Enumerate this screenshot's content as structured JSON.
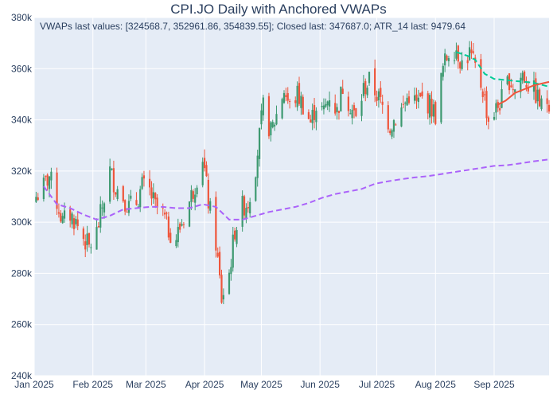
{
  "chart_data": {
    "type": "candlestick",
    "title": "CPI.JO Daily with Anchored VWAPs",
    "annotation": "VWAPs last values: [324568.7, 352961.86, 354839.55]; Closed last: 347687.0; ATR_14 last: 9479.64",
    "xlabel": "",
    "ylabel": "",
    "x_range": [
      "2025-01-01",
      "2025-09-30"
    ],
    "ylim": [
      240000,
      380000
    ],
    "x_ticks": [
      {
        "date": "2025-01-01",
        "label": "Jan 2025"
      },
      {
        "date": "2025-02-01",
        "label": "Feb 2025"
      },
      {
        "date": "2025-03-01",
        "label": "Mar 2025"
      },
      {
        "date": "2025-04-01",
        "label": "Apr 2025"
      },
      {
        "date": "2025-05-01",
        "label": "May 2025"
      },
      {
        "date": "2025-06-01",
        "label": "Jun 2025"
      },
      {
        "date": "2025-07-01",
        "label": "Jul 2025"
      },
      {
        "date": "2025-08-01",
        "label": "Aug 2025"
      },
      {
        "date": "2025-09-01",
        "label": "Sep 2025"
      }
    ],
    "y_ticks": [
      {
        "value": 240000,
        "label": "240k"
      },
      {
        "value": 260000,
        "label": "260k"
      },
      {
        "value": 280000,
        "label": "280k"
      },
      {
        "value": 300000,
        "label": "300k"
      },
      {
        "value": 320000,
        "label": "320k"
      },
      {
        "value": 340000,
        "label": "340k"
      },
      {
        "value": 360000,
        "label": "360k"
      },
      {
        "value": 380000,
        "label": "380k"
      }
    ],
    "grid": true,
    "colors": {
      "plot_bg": "#e5ecf6",
      "grid": "#ffffff",
      "up": "#3d9970",
      "down": "#ef553b",
      "vwap1": "#ab63fa",
      "vwap2": "#00cc96",
      "vwap3": "#ef553b"
    },
    "close_path": [
      [
        "2025-01-02",
        310000
      ],
      [
        "2025-01-06",
        314000
      ],
      [
        "2025-01-09",
        318000
      ],
      [
        "2025-01-13",
        308000
      ],
      [
        "2025-01-16",
        300000
      ],
      [
        "2025-01-20",
        303000
      ],
      [
        "2025-01-23",
        300000
      ],
      [
        "2025-01-27",
        294000
      ],
      [
        "2025-01-30",
        290000
      ],
      [
        "2025-02-03",
        296000
      ],
      [
        "2025-02-06",
        306000
      ],
      [
        "2025-02-10",
        320000
      ],
      [
        "2025-02-13",
        314000
      ],
      [
        "2025-02-17",
        310000
      ],
      [
        "2025-02-20",
        306000
      ],
      [
        "2025-02-24",
        308000
      ],
      [
        "2025-02-27",
        314000
      ],
      [
        "2025-03-03",
        312000
      ],
      [
        "2025-03-06",
        306000
      ],
      [
        "2025-03-10",
        303000
      ],
      [
        "2025-03-13",
        297000
      ],
      [
        "2025-03-17",
        294000
      ],
      [
        "2025-03-20",
        300000
      ],
      [
        "2025-03-24",
        308000
      ],
      [
        "2025-03-27",
        315000
      ],
      [
        "2025-03-31",
        326000
      ],
      [
        "2025-04-03",
        308000
      ],
      [
        "2025-04-07",
        292000
      ],
      [
        "2025-04-10",
        270000
      ],
      [
        "2025-04-14",
        280000
      ],
      [
        "2025-04-17",
        297000
      ],
      [
        "2025-04-21",
        306000
      ],
      [
        "2025-04-24",
        308000
      ],
      [
        "2025-04-28",
        322000
      ],
      [
        "2025-05-02",
        345000
      ],
      [
        "2025-05-06",
        335000
      ],
      [
        "2025-05-09",
        342000
      ],
      [
        "2025-05-13",
        352000
      ],
      [
        "2025-05-16",
        345000
      ],
      [
        "2025-05-20",
        350000
      ],
      [
        "2025-05-23",
        346000
      ],
      [
        "2025-05-27",
        339000
      ],
      [
        "2025-05-30",
        346000
      ],
      [
        "2025-06-03",
        343000
      ],
      [
        "2025-06-06",
        350000
      ],
      [
        "2025-06-10",
        343000
      ],
      [
        "2025-06-13",
        353000
      ],
      [
        "2025-06-17",
        346000
      ],
      [
        "2025-06-20",
        340000
      ],
      [
        "2025-06-24",
        352000
      ],
      [
        "2025-06-27",
        355000
      ],
      [
        "2025-07-01",
        350000
      ],
      [
        "2025-07-04",
        345000
      ],
      [
        "2025-07-08",
        338000
      ],
      [
        "2025-07-11",
        341000
      ],
      [
        "2025-07-15",
        345000
      ],
      [
        "2025-07-18",
        350000
      ],
      [
        "2025-07-22",
        346000
      ],
      [
        "2025-07-25",
        348000
      ],
      [
        "2025-07-29",
        346000
      ],
      [
        "2025-08-01",
        342000
      ],
      [
        "2025-08-05",
        360000
      ],
      [
        "2025-08-08",
        367000
      ],
      [
        "2025-08-12",
        368000
      ],
      [
        "2025-08-15",
        362000
      ],
      [
        "2025-08-19",
        366000
      ],
      [
        "2025-08-22",
        360000
      ],
      [
        "2025-08-26",
        352000
      ],
      [
        "2025-08-29",
        340000
      ],
      [
        "2025-09-02",
        344000
      ],
      [
        "2025-09-05",
        348000
      ],
      [
        "2025-09-09",
        356000
      ],
      [
        "2025-09-12",
        352000
      ],
      [
        "2025-09-16",
        358000
      ],
      [
        "2025-09-19",
        354000
      ],
      [
        "2025-09-23",
        350000
      ],
      [
        "2025-09-26",
        345000
      ],
      [
        "2025-09-29",
        347687
      ]
    ],
    "series": [
      {
        "key": "vwap1",
        "style": "dash",
        "points": [
          [
            "2025-01-06",
            314000
          ],
          [
            "2025-01-13",
            307000
          ],
          [
            "2025-01-20",
            305500
          ],
          [
            "2025-01-27",
            303000
          ],
          [
            "2025-02-03",
            301000
          ],
          [
            "2025-02-10",
            302500
          ],
          [
            "2025-02-17",
            305000
          ],
          [
            "2025-02-24",
            305500
          ],
          [
            "2025-03-03",
            306000
          ],
          [
            "2025-03-10",
            306000
          ],
          [
            "2025-03-17",
            305500
          ],
          [
            "2025-03-24",
            305500
          ],
          [
            "2025-03-31",
            307000
          ],
          [
            "2025-04-07",
            306000
          ],
          [
            "2025-04-14",
            301000
          ],
          [
            "2025-04-21",
            301000
          ],
          [
            "2025-04-28",
            302500
          ],
          [
            "2025-05-05",
            304000
          ],
          [
            "2025-05-12",
            305000
          ],
          [
            "2025-05-19",
            306000
          ],
          [
            "2025-05-26",
            307500
          ],
          [
            "2025-06-02",
            309500
          ],
          [
            "2025-06-09",
            311000
          ],
          [
            "2025-06-16",
            312000
          ],
          [
            "2025-06-23",
            313000
          ],
          [
            "2025-06-30",
            315000
          ],
          [
            "2025-07-07",
            316000
          ],
          [
            "2025-07-14",
            316800
          ],
          [
            "2025-07-21",
            317500
          ],
          [
            "2025-07-28",
            318000
          ],
          [
            "2025-08-04",
            318800
          ],
          [
            "2025-08-11",
            319600
          ],
          [
            "2025-08-18",
            320400
          ],
          [
            "2025-08-25",
            321200
          ],
          [
            "2025-09-01",
            322000
          ],
          [
            "2025-09-08",
            322300
          ],
          [
            "2025-09-15",
            323000
          ],
          [
            "2025-09-22",
            323800
          ],
          [
            "2025-09-30",
            324568.7
          ]
        ]
      },
      {
        "key": "vwap2",
        "style": "dash",
        "points": [
          [
            "2025-08-12",
            366500
          ],
          [
            "2025-08-18",
            365000
          ],
          [
            "2025-08-22",
            363500
          ],
          [
            "2025-08-27",
            358000
          ],
          [
            "2025-09-01",
            356000
          ],
          [
            "2025-09-08",
            355500
          ],
          [
            "2025-09-15",
            355000
          ],
          [
            "2025-09-22",
            354500
          ],
          [
            "2025-09-30",
            352961.86
          ]
        ]
      },
      {
        "key": "vwap3",
        "style": "solid",
        "points": [
          [
            "2025-09-03",
            346000
          ],
          [
            "2025-09-07",
            347500
          ],
          [
            "2025-09-12",
            350500
          ],
          [
            "2025-09-17",
            352000
          ],
          [
            "2025-09-22",
            353500
          ],
          [
            "2025-09-30",
            354839.55
          ]
        ]
      }
    ]
  }
}
